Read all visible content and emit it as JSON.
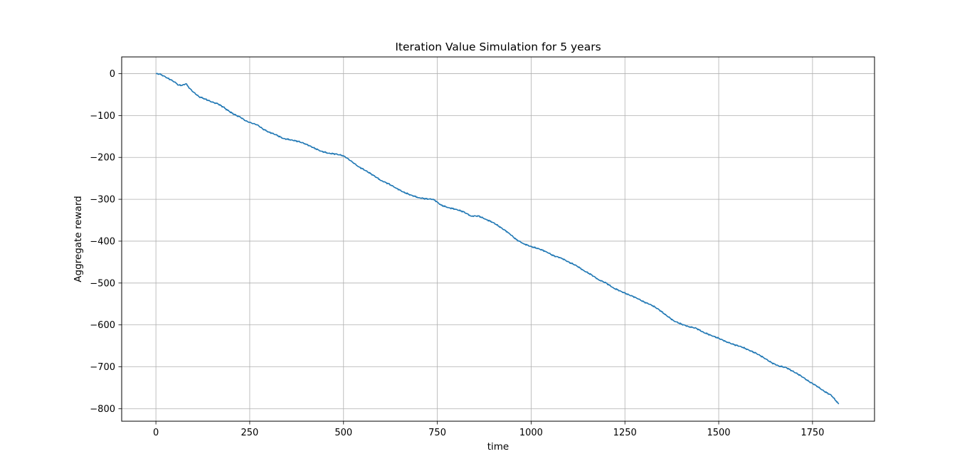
{
  "chart_data": {
    "type": "line",
    "title": "Iteration Value Simulation for 5 years",
    "xlabel": "time",
    "ylabel": "Aggregate reward",
    "xlim": [
      -91.25,
      1915.25
    ],
    "ylim": [
      -830,
      40
    ],
    "xticks": [
      0,
      250,
      500,
      750,
      1000,
      1250,
      1500,
      1750
    ],
    "xtick_labels": [
      "0",
      "250",
      "500",
      "750",
      "1000",
      "1250",
      "1500",
      "1750"
    ],
    "yticks": [
      0,
      -100,
      -200,
      -300,
      -400,
      -500,
      -600,
      -700,
      -800
    ],
    "ytick_labels": [
      "0",
      "−100",
      "−200",
      "−300",
      "−400",
      "−500",
      "−600",
      "−700",
      "−800"
    ],
    "grid": true,
    "line_color": "#1f77b4",
    "series": [
      {
        "x": [
          0,
          10,
          20,
          30,
          40,
          50,
          60,
          70,
          80,
          90,
          100,
          115,
          130,
          150,
          165,
          180,
          195,
          210,
          225,
          240,
          255,
          270,
          285,
          300,
          320,
          340,
          360,
          380,
          400,
          420,
          440,
          460,
          480,
          500,
          510,
          525,
          540,
          560,
          580,
          600,
          620,
          640,
          660,
          680,
          700,
          720,
          740,
          760,
          780,
          800,
          820,
          840,
          860,
          880,
          900,
          920,
          940,
          960,
          980,
          1000,
          1020,
          1040,
          1060,
          1080,
          1100,
          1120,
          1140,
          1160,
          1180,
          1200,
          1220,
          1240,
          1260,
          1280,
          1300,
          1320,
          1340,
          1360,
          1380,
          1400,
          1420,
          1440,
          1460,
          1480,
          1500,
          1520,
          1540,
          1560,
          1580,
          1600,
          1620,
          1640,
          1660,
          1680,
          1700,
          1720,
          1740,
          1760,
          1780,
          1800,
          1820
        ],
        "y": [
          0,
          -1,
          -5,
          -10,
          -15,
          -20,
          -27,
          -28,
          -24,
          -35,
          -44,
          -55,
          -60,
          -68,
          -72,
          -80,
          -90,
          -98,
          -104,
          -113,
          -118,
          -122,
          -132,
          -139,
          -146,
          -155,
          -158,
          -162,
          -168,
          -177,
          -185,
          -190,
          -192,
          -196,
          -202,
          -212,
          -222,
          -232,
          -243,
          -255,
          -263,
          -273,
          -283,
          -290,
          -296,
          -299,
          -300,
          -314,
          -320,
          -324,
          -330,
          -340,
          -340,
          -348,
          -356,
          -368,
          -380,
          -396,
          -406,
          -413,
          -418,
          -425,
          -435,
          -440,
          -450,
          -458,
          -470,
          -480,
          -492,
          -500,
          -512,
          -520,
          -528,
          -535,
          -545,
          -552,
          -563,
          -577,
          -590,
          -598,
          -604,
          -608,
          -618,
          -625,
          -632,
          -640,
          -647,
          -652,
          -660,
          -668,
          -678,
          -690,
          -698,
          -702,
          -712,
          -722,
          -735,
          -745,
          -758,
          -768,
          -789
        ]
      }
    ]
  }
}
